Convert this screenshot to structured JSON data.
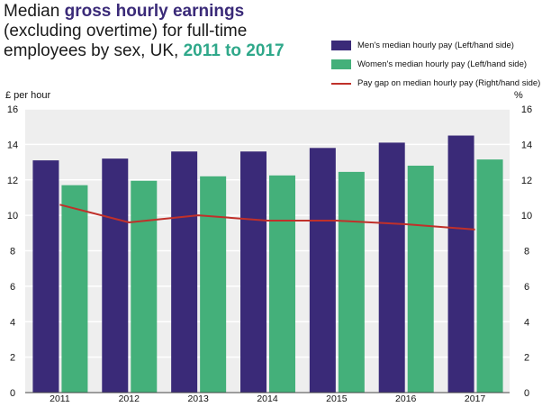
{
  "title": {
    "part1": "Median ",
    "part2": "gross hourly earnings",
    "part3": " (excluding overtime) for full-time employees by sex, UK, ",
    "part4": "2011 to 2017"
  },
  "left_unit": "£ per hour",
  "right_unit": "%",
  "colors": {
    "men": "#3a2a78",
    "women": "#44b07a",
    "gap": "#c0302a",
    "panel": "#eeeeee"
  },
  "chart_data": {
    "type": "bar",
    "categories": [
      "2011",
      "2012",
      "2013",
      "2014",
      "2015",
      "2016",
      "2017"
    ],
    "series": [
      {
        "name": "Men's median hourly pay (Left/hand side)",
        "axis": "left",
        "type": "bar",
        "values": [
          13.1,
          13.2,
          13.6,
          13.6,
          13.8,
          14.1,
          14.5
        ]
      },
      {
        "name": "Women's median hourly pay (Left/hand side)",
        "axis": "left",
        "type": "bar",
        "values": [
          11.7,
          11.95,
          12.2,
          12.25,
          12.45,
          12.8,
          13.15
        ]
      },
      {
        "name": "Pay gap on median hourly pay (Right/hand side)",
        "axis": "right",
        "type": "line",
        "values": [
          10.6,
          9.6,
          10.0,
          9.7,
          9.7,
          9.5,
          9.2
        ]
      }
    ],
    "ylim": [
      0,
      16
    ],
    "y2lim": [
      0,
      16
    ],
    "yticks": [
      0,
      2,
      4,
      6,
      8,
      10,
      12,
      14,
      16
    ],
    "grid": true
  }
}
